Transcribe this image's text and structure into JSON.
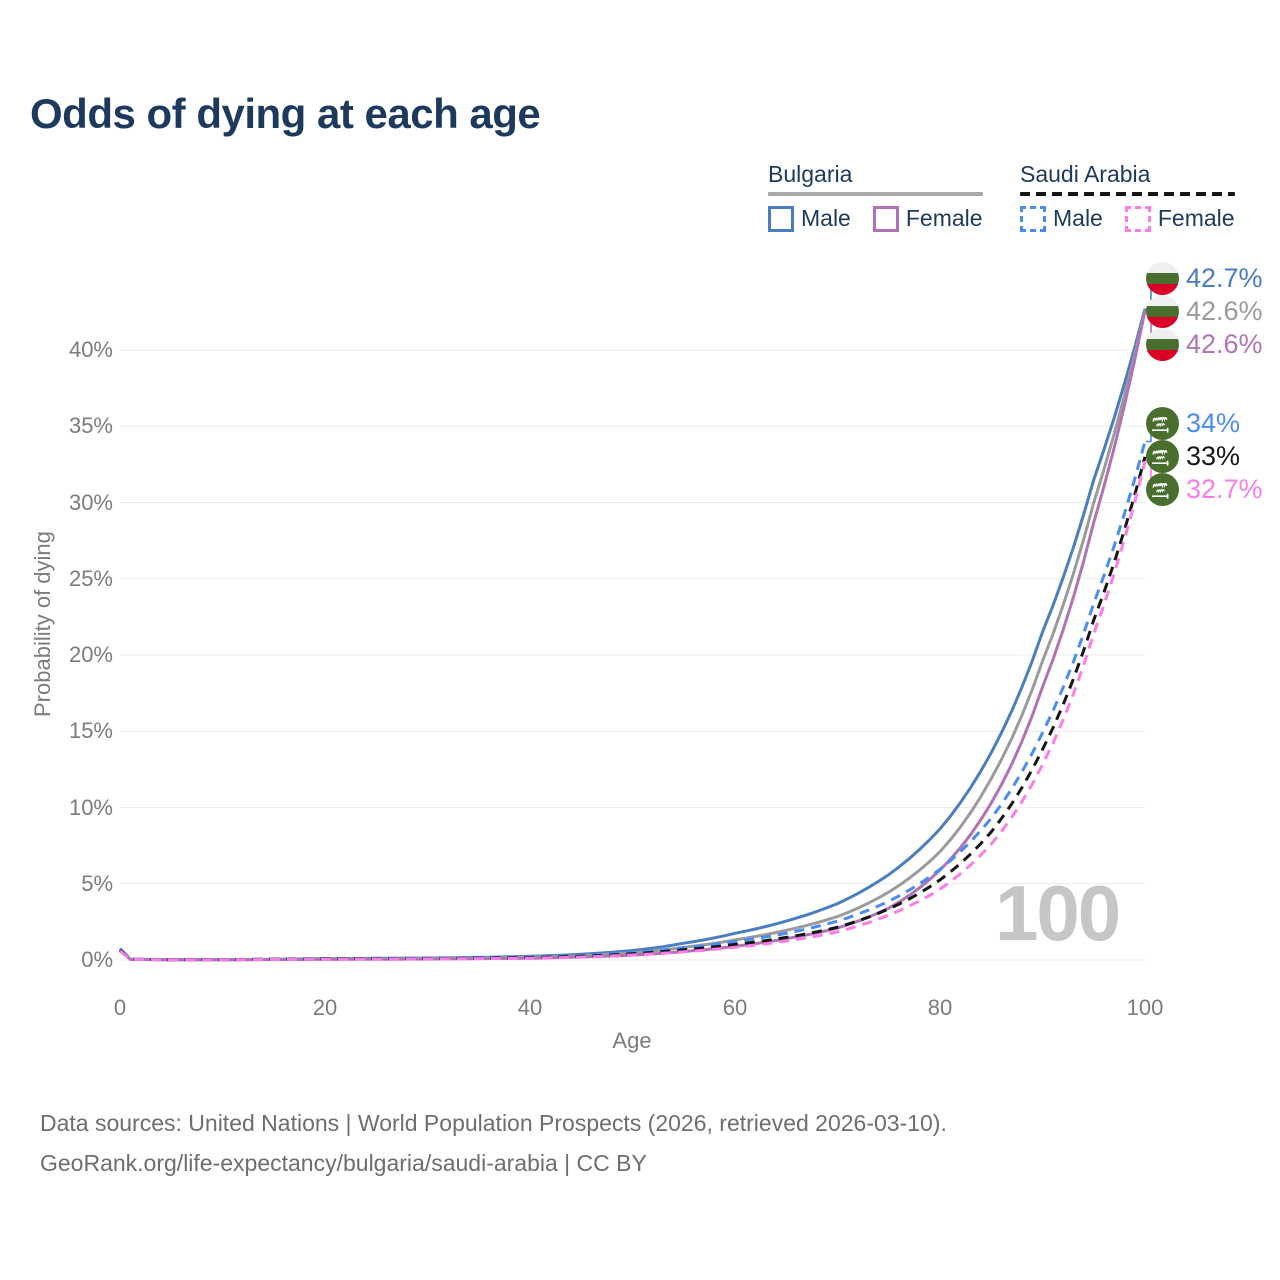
{
  "title": "Odds of dying at each age",
  "legend": {
    "groups": [
      {
        "name": "Bulgaria",
        "line_style": "solid",
        "underline_color": "#a8a8a8",
        "items": [
          {
            "label": "Male",
            "color": "#4a7ec0",
            "dashed": false
          },
          {
            "label": "Female",
            "color": "#b173b3",
            "dashed": false
          }
        ]
      },
      {
        "name": "Saudi Arabia",
        "line_style": "dashed",
        "underline_color": "#161616",
        "items": [
          {
            "label": "Male",
            "color": "#4a8cf7",
            "dashed": true
          },
          {
            "label": "Female",
            "color": "#fc7de8",
            "dashed": true
          }
        ]
      }
    ]
  },
  "chart_data": {
    "type": "line",
    "title": "Odds of dying at each age",
    "xlabel": "Age",
    "ylabel": "Probability of dying",
    "xlim": [
      0,
      100
    ],
    "ylim": [
      0,
      44
    ],
    "x_ticks": [
      0,
      20,
      40,
      60,
      80,
      100
    ],
    "y_ticks": [
      0,
      5,
      10,
      15,
      20,
      25,
      30,
      35,
      40
    ],
    "y_tick_labels": [
      "0%",
      "5%",
      "10%",
      "15%",
      "20%",
      "25%",
      "30%",
      "35%",
      "40%"
    ],
    "grid": "horizontal",
    "legend_position": "top-right",
    "watermark": "100",
    "x": [
      0,
      1,
      5,
      10,
      15,
      20,
      25,
      30,
      35,
      40,
      45,
      50,
      55,
      60,
      65,
      70,
      75,
      80,
      85,
      90,
      95,
      100
    ],
    "series": [
      {
        "name": "Bulgaria Male",
        "country": "Bulgaria",
        "sex": "Male",
        "color": "#4a7ec0",
        "dashed": false,
        "end_label": "42.7%",
        "values": [
          0.75,
          0.05,
          0.02,
          0.02,
          0.05,
          0.09,
          0.11,
          0.13,
          0.17,
          0.24,
          0.38,
          0.62,
          1.1,
          1.75,
          2.55,
          3.7,
          5.6,
          8.6,
          13.6,
          21.5,
          31.5,
          42.7
        ]
      },
      {
        "name": "Bulgaria",
        "country": "Bulgaria",
        "sex": "Both",
        "color": "#9b9b9b",
        "dashed": false,
        "end_label": "42.6%",
        "values": [
          0.7,
          0.045,
          0.02,
          0.02,
          0.04,
          0.07,
          0.08,
          0.1,
          0.13,
          0.18,
          0.29,
          0.47,
          0.83,
          1.32,
          1.95,
          2.85,
          4.45,
          7.1,
          11.9,
          19.6,
          30.0,
          42.6
        ]
      },
      {
        "name": "Bulgaria Female",
        "country": "Bulgaria",
        "sex": "Female",
        "color": "#b173b3",
        "dashed": false,
        "end_label": "42.6%",
        "values": [
          0.65,
          0.04,
          0.015,
          0.015,
          0.03,
          0.04,
          0.05,
          0.06,
          0.09,
          0.12,
          0.2,
          0.32,
          0.56,
          0.9,
          1.4,
          2.1,
          3.4,
          5.9,
          10.3,
          17.9,
          28.7,
          42.6
        ]
      },
      {
        "name": "Saudi Arabia Male",
        "country": "Saudi Arabia",
        "sex": "Male",
        "color": "#4a8cf7",
        "dashed": true,
        "end_label": "34%",
        "values": [
          0.7,
          0.05,
          0.03,
          0.03,
          0.06,
          0.09,
          0.1,
          0.11,
          0.14,
          0.19,
          0.29,
          0.48,
          0.8,
          1.22,
          1.75,
          2.55,
          3.85,
          5.95,
          9.3,
          14.9,
          23.4,
          34.0
        ]
      },
      {
        "name": "Saudi Arabia",
        "country": "Saudi Arabia",
        "sex": "Both",
        "color": "#161616",
        "dashed": true,
        "end_label": "33%",
        "values": [
          0.65,
          0.045,
          0.025,
          0.025,
          0.05,
          0.07,
          0.08,
          0.09,
          0.12,
          0.16,
          0.24,
          0.41,
          0.67,
          1.02,
          1.48,
          2.15,
          3.35,
          5.25,
          8.4,
          13.8,
          22.3,
          33.0
        ]
      },
      {
        "name": "Saudi Arabia Female",
        "country": "Saudi Arabia",
        "sex": "Female",
        "color": "#fc7de8",
        "dashed": true,
        "end_label": "32.7%",
        "values": [
          0.6,
          0.04,
          0.02,
          0.02,
          0.035,
          0.05,
          0.06,
          0.07,
          0.09,
          0.12,
          0.19,
          0.33,
          0.54,
          0.83,
          1.24,
          1.85,
          2.95,
          4.65,
          7.6,
          12.8,
          21.4,
          32.7
        ]
      }
    ]
  },
  "end_labels": [
    {
      "value": "42.7%",
      "color": "#4a7ec0",
      "flag": "bulgaria"
    },
    {
      "value": "42.6%",
      "color": "#9b9b9b",
      "flag": "bulgaria"
    },
    {
      "value": "42.6%",
      "color": "#b173b3",
      "flag": "bulgaria"
    },
    {
      "value": "34%",
      "color": "#4a8cf7",
      "flag": "saudi-arabia"
    },
    {
      "value": "33%",
      "color": "#161616",
      "flag": "saudi-arabia"
    },
    {
      "value": "32.7%",
      "color": "#fc7de8",
      "flag": "saudi-arabia"
    }
  ],
  "footer": {
    "line1": "Data sources: United Nations | World Population Prospects (2026, retrieved 2026-03-10).",
    "line2": "GeoRank.org/life-expectancy/bulgaria/saudi-arabia | CC BY"
  }
}
